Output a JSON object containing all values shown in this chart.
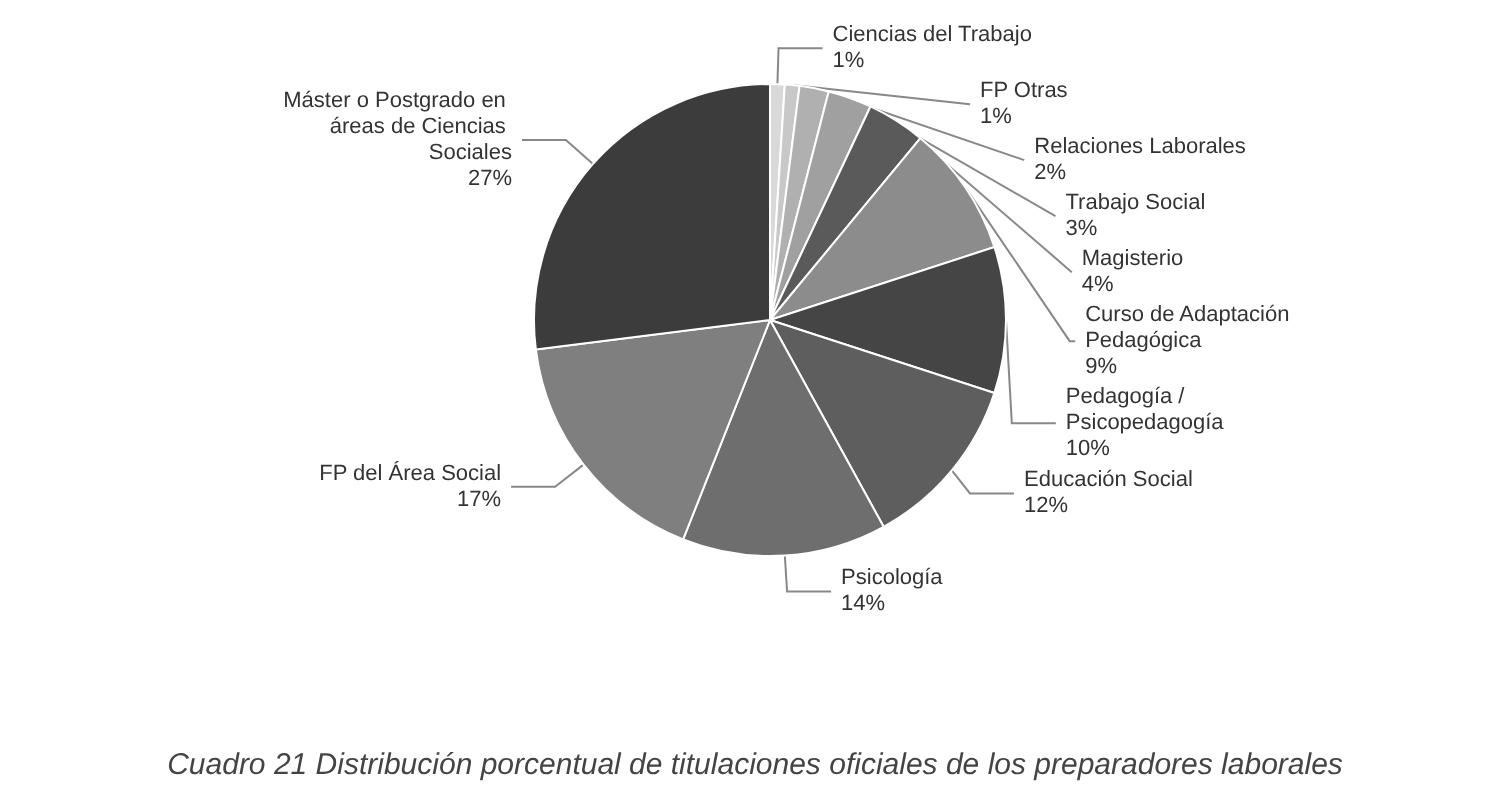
{
  "chart_data": {
    "type": "pie",
    "categories": [
      "Ciencias del Trabajo",
      "FP Otras",
      "Relaciones Laborales",
      "Trabajo Social",
      "Magisterio",
      "Curso de Adaptación Pedagógica",
      "Pedagogía / Psicopedagogía",
      "Educación Social",
      "Psicología",
      "FP del Área Social",
      "Máster o Postgrado en áreas de Ciencias Sociales"
    ],
    "values": [
      1,
      1,
      2,
      3,
      4,
      9,
      10,
      12,
      14,
      17,
      27
    ],
    "value_labels": [
      "1%",
      "1%",
      "2%",
      "3%",
      "4%",
      "9%",
      "10%",
      "12%",
      "14%",
      "17%",
      "27%"
    ],
    "colors": [
      "#d9d9d9",
      "#c8c8c8",
      "#b0b0b0",
      "#a0a0a0",
      "#5a5a5a",
      "#8c8c8c",
      "#454545",
      "#5e5e5e",
      "#6e6e6e",
      "#7f7f7f",
      "#3c3c3c"
    ],
    "annotations": [
      "Cuadro 21 Distribución porcentual de titulaciones oficiales de los preparadores laborales"
    ],
    "legend": false
  }
}
